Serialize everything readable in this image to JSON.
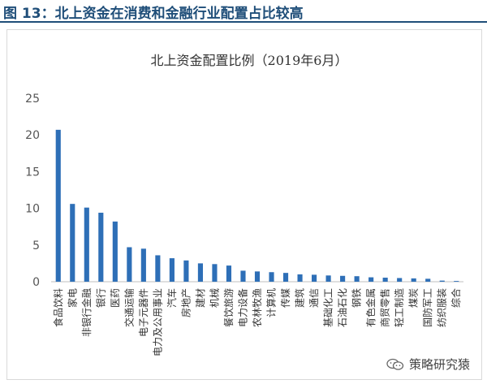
{
  "figure": {
    "label": "图 13：北上资金在消费和金融行业配置占比较高"
  },
  "watermark": {
    "icon": "wechat-icon",
    "text": "策略研究猿"
  },
  "colors": {
    "bar": "#2e6fb7",
    "axis": "#bfbfbf",
    "header": "#1f4e79"
  },
  "chart_data": {
    "type": "bar",
    "title": "北上资金配置比例（2019年6月）",
    "xlabel": "",
    "ylabel": "",
    "ylim": [
      0,
      25
    ],
    "yticks": [
      0,
      5,
      10,
      15,
      20,
      25
    ],
    "grid": false,
    "categories": [
      "食品饮料",
      "家电",
      "非银行金融",
      "银行",
      "医药",
      "交通运输",
      "电子元器件",
      "电力及公用事业",
      "汽车",
      "房地产",
      "建材",
      "机械",
      "餐饮旅游",
      "电力设备",
      "农林牧渔",
      "计算机",
      "传媒",
      "建筑",
      "通信",
      "基础化工",
      "石油石化",
      "钢铁",
      "有色金属",
      "商贸零售",
      "轻工制造",
      "煤炭",
      "国防军工",
      "纺织服装",
      "综合"
    ],
    "values": [
      20.7,
      10.6,
      10.1,
      9.4,
      8.2,
      4.7,
      4.5,
      3.6,
      3.2,
      2.9,
      2.5,
      2.4,
      2.2,
      1.5,
      1.4,
      1.3,
      1.2,
      1.0,
      0.95,
      0.85,
      0.8,
      0.75,
      0.6,
      0.55,
      0.5,
      0.45,
      0.4,
      0.15,
      0.1
    ]
  }
}
